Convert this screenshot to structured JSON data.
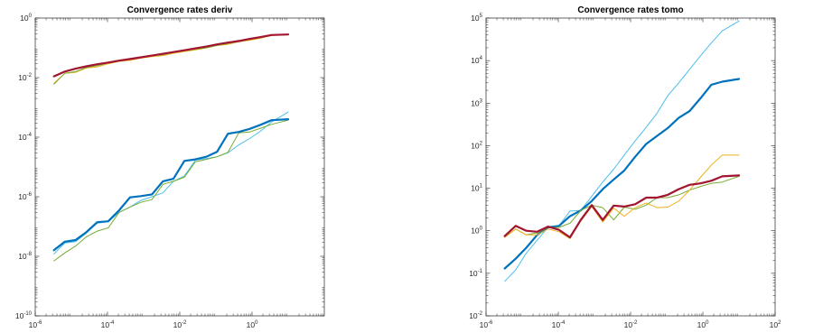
{
  "chart_data": [
    {
      "type": "line",
      "title": "Convergence rates deriv",
      "xscale": "log",
      "yscale": "log",
      "xlim": [
        1e-06,
        100
      ],
      "ylim": [
        1e-10,
        1
      ],
      "xticks": [
        {
          "value": 1e-06,
          "base": "10",
          "exp": "-6"
        },
        {
          "value": 0.0001,
          "base": "10",
          "exp": "-4"
        },
        {
          "value": 0.01,
          "base": "10",
          "exp": "-2"
        },
        {
          "value": 1,
          "base": "10",
          "exp": "0"
        }
      ],
      "yticks": [
        {
          "value": 1e-10,
          "base": "10",
          "exp": "-10"
        },
        {
          "value": 1e-08,
          "base": "10",
          "exp": "-8"
        },
        {
          "value": 1e-06,
          "base": "10",
          "exp": "-6"
        },
        {
          "value": 0.0001,
          "base": "10",
          "exp": "-4"
        },
        {
          "value": 0.01,
          "base": "10",
          "exp": "-2"
        },
        {
          "value": 1,
          "base": "10",
          "exp": "0"
        }
      ],
      "grid": false,
      "x": [
        3.3e-06,
        6.6e-06,
        1.3e-05,
        2.6e-05,
        5.2e-05,
        0.000105,
        0.00021,
        0.00042,
        0.00084,
        0.0017,
        0.0034,
        0.0067,
        0.0134,
        0.027,
        0.054,
        0.107,
        0.215,
        0.43,
        0.86,
        1.72,
        3.44,
        10
      ],
      "series": [
        {
          "color": "#EDB120",
          "width": 1,
          "values": [
            0.0065,
            0.014,
            0.015,
            0.021,
            0.023,
            0.029,
            0.035,
            0.038,
            0.045,
            0.051,
            0.055,
            0.066,
            0.075,
            0.085,
            0.099,
            0.12,
            0.13,
            0.16,
            0.18,
            0.21,
            0.26,
            0.28
          ]
        },
        {
          "color": "#77AC30",
          "width": 1,
          "values": [
            0.006,
            0.014,
            0.016,
            0.022,
            0.025,
            0.031,
            0.037,
            0.042,
            0.047,
            0.054,
            0.058,
            0.07,
            0.08,
            0.09,
            0.1,
            0.12,
            0.14,
            0.16,
            0.19,
            0.22,
            0.27,
            0.28
          ]
        },
        {
          "color": "#A2142F",
          "width": 2.2,
          "values": [
            0.011,
            0.016,
            0.02,
            0.024,
            0.028,
            0.032,
            0.037,
            0.042,
            0.048,
            0.055,
            0.063,
            0.072,
            0.083,
            0.096,
            0.11,
            0.13,
            0.15,
            0.17,
            0.2,
            0.23,
            0.27,
            0.28
          ]
        },
        {
          "color": "#4DBEEE",
          "width": 1,
          "values": [
            1.2e-08,
            2.8e-08,
            3.1e-08,
            6e-08,
            1.3e-07,
            1.45e-07,
            3e-07,
            4.5e-07,
            7.5e-07,
            1e-06,
            1.35e-06,
            3.3e-06,
            5e-06,
            1.7e-05,
            1.9e-05,
            2.2e-05,
            3e-05,
            5.5e-05,
            9e-05,
            0.00016,
            0.00032,
            0.0007
          ]
        },
        {
          "color": "#77AC30",
          "width": 1,
          "values": [
            7e-09,
            1.3e-08,
            2.2e-08,
            4.5e-08,
            7e-08,
            9e-08,
            3e-07,
            4.5e-07,
            6.5e-07,
            8e-07,
            2.6e-06,
            3.3e-06,
            4.5e-06,
            1.5e-05,
            1.8e-05,
            2.2e-05,
            3.1e-05,
            0.00014,
            0.00015,
            0.0002,
            0.00027,
            0.00037
          ]
        },
        {
          "color": "#0072BD",
          "width": 2.2,
          "values": [
            1.6e-08,
            3.1e-08,
            3.5e-08,
            6.5e-08,
            1.4e-07,
            1.5e-07,
            3.5e-07,
            9.5e-07,
            1.05e-06,
            1.2e-06,
            3.3e-06,
            4e-06,
            1.6e-05,
            1.8e-05,
            2.2e-05,
            3.2e-05,
            0.00013,
            0.00015,
            0.00019,
            0.00026,
            0.00037,
            0.0004
          ]
        }
      ]
    },
    {
      "type": "line",
      "title": "Convergence rates tomo",
      "xscale": "log",
      "yscale": "log",
      "xlim": [
        1e-06,
        100
      ],
      "ylim": [
        0.01,
        100000
      ],
      "xticks": [
        {
          "value": 1e-06,
          "base": "10",
          "exp": "-6"
        },
        {
          "value": 0.0001,
          "base": "10",
          "exp": "-4"
        },
        {
          "value": 0.01,
          "base": "10",
          "exp": "-2"
        },
        {
          "value": 1,
          "base": "10",
          "exp": "0"
        },
        {
          "value": 100,
          "base": "10",
          "exp": "2"
        }
      ],
      "yticks": [
        {
          "value": 0.01,
          "base": "10",
          "exp": "-2"
        },
        {
          "value": 0.1,
          "base": "10",
          "exp": "-1"
        },
        {
          "value": 1,
          "base": "10",
          "exp": "0"
        },
        {
          "value": 10,
          "base": "10",
          "exp": "1"
        },
        {
          "value": 100,
          "base": "10",
          "exp": "2"
        },
        {
          "value": 1000,
          "base": "10",
          "exp": "3"
        },
        {
          "value": 10000,
          "base": "10",
          "exp": "4"
        },
        {
          "value": 100000,
          "base": "10",
          "exp": "5"
        }
      ],
      "grid": false,
      "x": [
        3.3e-06,
        6.6e-06,
        1.3e-05,
        2.6e-05,
        5.2e-05,
        0.000105,
        0.00021,
        0.00042,
        0.00084,
        0.0017,
        0.0034,
        0.0067,
        0.0134,
        0.027,
        0.054,
        0.107,
        0.215,
        0.43,
        0.86,
        1.72,
        3.44,
        10
      ],
      "series": [
        {
          "color": "#4DBEEE",
          "width": 1,
          "values": [
            0.065,
            0.12,
            0.3,
            0.6,
            1.2,
            1.3,
            2.9,
            3.0,
            6.5,
            14,
            28,
            60,
            130,
            270,
            580,
            1500,
            3000,
            6200,
            13000,
            26000,
            50000,
            85000
          ]
        },
        {
          "color": "#0072BD",
          "width": 2.2,
          "values": [
            0.13,
            0.22,
            0.4,
            0.8,
            1.2,
            1.3,
            2.2,
            3.0,
            5.0,
            9.5,
            16,
            26,
            55,
            110,
            170,
            260,
            450,
            650,
            1300,
            2700,
            3200,
            3700
          ]
        },
        {
          "color": "#77AC30",
          "width": 1,
          "values": [
            0.7,
            1.1,
            0.8,
            0.9,
            1.2,
            1.2,
            1.5,
            3.0,
            4.0,
            3.5,
            1.8,
            3.6,
            3.2,
            4.0,
            6.0,
            6.0,
            7.0,
            9.0,
            11,
            13,
            14,
            19
          ]
        },
        {
          "color": "#EDB120",
          "width": 1,
          "values": [
            0.7,
            1.1,
            0.8,
            0.8,
            1.1,
            0.95,
            0.65,
            1.7,
            3.7,
            1.6,
            3.4,
            2.2,
            3.5,
            4.5,
            3.5,
            3.6,
            5.0,
            9.0,
            18,
            35,
            60,
            60
          ]
        },
        {
          "color": "#A2142F",
          "width": 2.2,
          "values": [
            0.75,
            1.3,
            1.0,
            0.95,
            1.25,
            1.05,
            0.7,
            1.8,
            4.0,
            1.8,
            3.9,
            3.7,
            4.2,
            6.0,
            6.0,
            7.0,
            9.5,
            12,
            13,
            15,
            19,
            20
          ]
        }
      ]
    }
  ]
}
